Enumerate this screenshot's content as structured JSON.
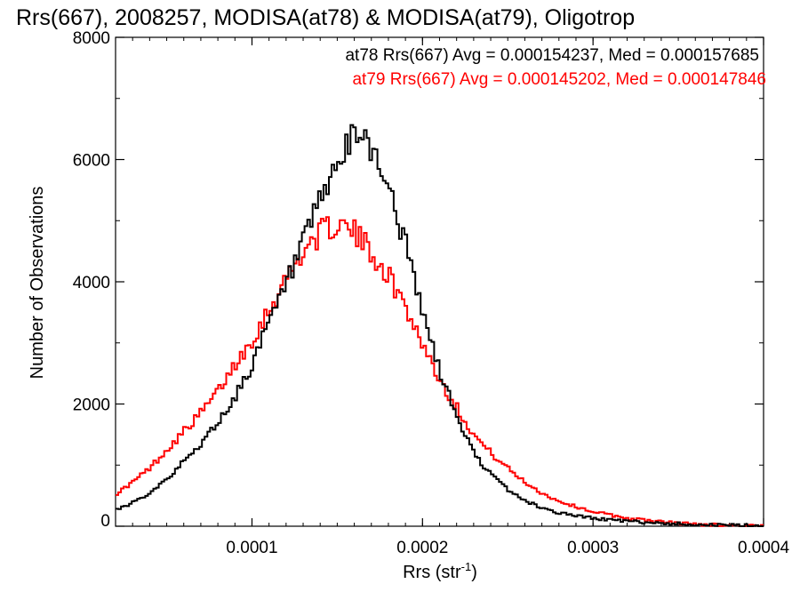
{
  "chart_data": {
    "type": "line",
    "title": "Rrs(667), 2008257, MODISA(at78) & MODISA(at79), Oligotrop",
    "xlabel": "Rrs (str",
    "xlabel_exponent": "-1",
    "xlabel_close": ")",
    "ylabel": "Number of Observations",
    "xlim": [
      2e-05,
      0.0004
    ],
    "ylim": [
      0,
      8000
    ],
    "x_ticks": [
      0.0001,
      0.0002,
      0.0003,
      0.0004
    ],
    "x_tick_labels": [
      "0.0001",
      "0.0002",
      "0.0003",
      "0.0004"
    ],
    "y_ticks": [
      0,
      2000,
      4000,
      6000,
      8000
    ],
    "y_tick_labels": [
      "0",
      "2000",
      "4000",
      "6000",
      "8000"
    ],
    "grid": false,
    "legend": "top-right",
    "series": [
      {
        "name": "at78",
        "color": "#000000",
        "annotation": "at78 Rrs(667) Avg = 0.000154237, Med = 0.000157685",
        "x": [
          2e-05,
          3e-05,
          4e-05,
          5e-05,
          6e-05,
          7e-05,
          8e-05,
          9e-05,
          0.0001,
          0.00011,
          0.00012,
          0.00013,
          0.00014,
          0.00015,
          0.00016,
          0.000165,
          0.00017,
          0.00018,
          0.00019,
          0.0002,
          0.00021,
          0.00022,
          0.00023,
          0.00024,
          0.00025,
          0.00026,
          0.00027,
          0.00028,
          0.0003,
          0.00032,
          0.00034,
          0.00036,
          0.00038,
          0.0004
        ],
        "values": [
          250,
          380,
          550,
          780,
          1050,
          1350,
          1700,
          2100,
          2650,
          3300,
          3950,
          4600,
          5300,
          5900,
          6350,
          6450,
          6200,
          5600,
          4600,
          3500,
          2550,
          1800,
          1200,
          850,
          600,
          420,
          300,
          220,
          130,
          80,
          50,
          30,
          15,
          5
        ]
      },
      {
        "name": "at79",
        "color": "#ff0000",
        "annotation": "at79 Rrs(667) Avg = 0.000145202, Med = 0.000147846",
        "x": [
          2e-05,
          3e-05,
          4e-05,
          5e-05,
          6e-05,
          7e-05,
          8e-05,
          9e-05,
          0.0001,
          0.00011,
          0.00012,
          0.00013,
          0.00014,
          0.00015,
          0.00016,
          0.00017,
          0.00018,
          0.00019,
          0.0002,
          0.00021,
          0.00022,
          0.00023,
          0.00024,
          0.00025,
          0.00026,
          0.00027,
          0.00028,
          0.00029,
          0.0003,
          0.00032,
          0.00034,
          0.00036,
          0.00038,
          0.0004
        ],
        "values": [
          520,
          720,
          950,
          1250,
          1550,
          1850,
          2200,
          2650,
          3050,
          3550,
          4050,
          4500,
          4800,
          4950,
          4800,
          4500,
          4100,
          3600,
          3000,
          2400,
          1950,
          1500,
          1200,
          950,
          720,
          540,
          410,
          320,
          240,
          130,
          70,
          35,
          15,
          8
        ]
      }
    ]
  }
}
